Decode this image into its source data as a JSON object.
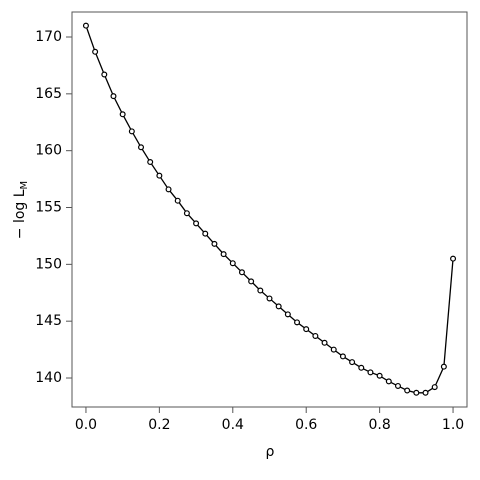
{
  "chart_data": {
    "type": "line",
    "xlabel": "ρ",
    "ylabel": "− log L",
    "ylabel_sub": "M",
    "x": [
      0,
      0.025,
      0.05,
      0.075,
      0.1,
      0.125,
      0.15,
      0.175,
      0.2,
      0.225,
      0.25,
      0.275,
      0.3,
      0.325,
      0.35,
      0.375,
      0.4,
      0.425,
      0.45,
      0.475,
      0.5,
      0.525,
      0.55,
      0.575,
      0.6,
      0.625,
      0.65,
      0.675,
      0.7,
      0.725,
      0.75,
      0.775,
      0.8,
      0.825,
      0.85,
      0.875,
      0.9,
      0.925,
      0.95,
      0.975,
      1.0
    ],
    "series": [
      {
        "color": "#000000",
        "values": [
          171.0,
          168.7,
          166.7,
          164.8,
          163.2,
          161.7,
          160.3,
          159.0,
          157.8,
          156.6,
          155.6,
          154.5,
          153.6,
          152.7,
          151.8,
          150.9,
          150.1,
          149.3,
          148.5,
          147.7,
          147.0,
          146.3,
          145.6,
          144.9,
          144.3,
          143.7,
          143.1,
          142.5,
          141.9,
          141.4,
          140.9,
          140.5,
          140.2,
          139.7,
          139.3,
          138.9,
          138.7,
          138.7,
          139.2,
          141.0,
          150.5
        ]
      }
    ],
    "xlim": [
      -0.038,
      1.038
    ],
    "ylim": [
      137.45,
      172.2
    ],
    "xticks": [
      {
        "value": 0,
        "label": "0.0"
      },
      0.2,
      0.4,
      0.6,
      0.8,
      {
        "value": 1,
        "label": "1.0"
      }
    ],
    "yticks": [
      140,
      145,
      150,
      155,
      160,
      165,
      170
    ]
  }
}
